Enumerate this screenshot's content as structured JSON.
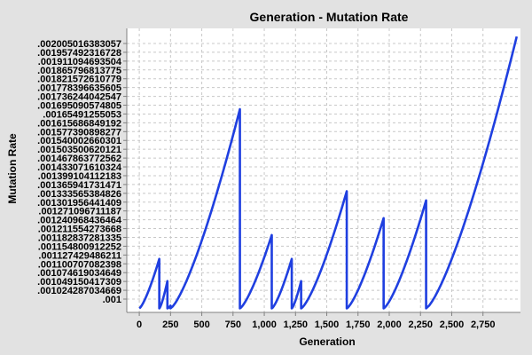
{
  "chart_data": {
    "type": "line",
    "title": "Generation - Mutation Rate",
    "xlabel": "Generation",
    "ylabel": "Mutation Rate",
    "xlim": [
      -100,
      3050
    ],
    "x_ticks": [
      {
        "value": 0,
        "label": "0"
      },
      {
        "value": 250,
        "label": "250"
      },
      {
        "value": 500,
        "label": "500"
      },
      {
        "value": 750,
        "label": "750"
      },
      {
        "value": 1000,
        "label": "1,000"
      },
      {
        "value": 1250,
        "label": "1,250"
      },
      {
        "value": 1500,
        "label": "1,500"
      },
      {
        "value": 1750,
        "label": "1,750"
      },
      {
        "value": 2000,
        "label": "2,000"
      },
      {
        "value": 2250,
        "label": "2,250"
      },
      {
        "value": 2500,
        "label": "2,500"
      },
      {
        "value": 2750,
        "label": "2,750"
      }
    ],
    "ylim": [
      0.000985,
      0.002035
    ],
    "y_tick_labels": [
      ".002005016383057",
      ".001957492316728",
      ".001911094693504",
      ".001865796813775",
      ".001821572610779",
      ".001778396635605",
      ".001736244042547",
      ".001695090574805",
      ".00165491255053",
      ".001615686849192",
      ".001577390898277",
      ".001540002660301",
      ".001503500620121",
      ".001467863772562",
      ".001433071610324",
      ".001399104112183",
      ".001365941731471",
      ".001333565384826",
      ".001301956441409",
      ".001271096711187",
      ".001240968436464",
      ".001211554273668",
      ".001182837281335",
      ".001154800912252",
      ".001127429486211",
      ".001100707082398",
      ".001074619034649",
      ".001049150417309",
      ".001024287034669",
      ".001"
    ],
    "grid": true,
    "series": [
      {
        "color": "#1f3fe0",
        "segments": [
          {
            "x_start": 0,
            "x_end": 160,
            "y_end": 0.001182837281335
          },
          {
            "x_start": 160,
            "x_end": 225,
            "y_end": 0.001100707082398
          },
          {
            "x_start": 225,
            "x_end": 250,
            "y_end": 0.00101
          },
          {
            "x_start": 250,
            "x_end": 805,
            "y_end": 0.001736244042547
          },
          {
            "x_start": 805,
            "x_end": 1060,
            "y_end": 0.001271096711187
          },
          {
            "x_start": 1060,
            "x_end": 1220,
            "y_end": 0.001182837281335
          },
          {
            "x_start": 1220,
            "x_end": 1295,
            "y_end": 0.001100707082398
          },
          {
            "x_start": 1295,
            "x_end": 1660,
            "y_end": 0.001433071610324
          },
          {
            "x_start": 1660,
            "x_end": 1955,
            "y_end": 0.001333565384826
          },
          {
            "x_start": 1955,
            "x_end": 2295,
            "y_end": 0.001399104112183
          },
          {
            "x_start": 2295,
            "x_end": 3020,
            "y_end": 0.002005016383057
          }
        ],
        "baseline": 0.001
      }
    ]
  }
}
